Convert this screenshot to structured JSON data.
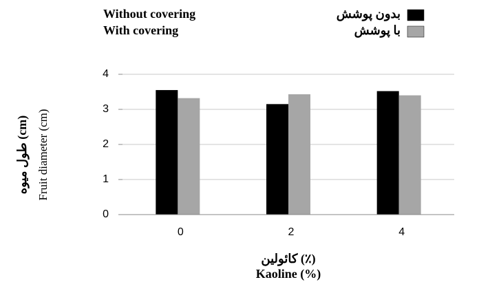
{
  "chart_data": {
    "type": "bar",
    "categories": [
      "0",
      "2",
      "4"
    ],
    "series": [
      {
        "name": "بدون پوشش",
        "name_en": "Without covering",
        "color": "#000000",
        "values": [
          3.55,
          3.15,
          3.52
        ]
      },
      {
        "name": "با پوشش",
        "name_en": "With covering",
        "color": "#a6a6a6",
        "values": [
          3.32,
          3.43,
          3.4
        ]
      }
    ],
    "ylim": [
      0,
      4
    ],
    "yticks": [
      0,
      1,
      2,
      3,
      4
    ],
    "grid": true,
    "y_label": "طول میوه (cm)",
    "y_label_en": "Fruit diameter (cm)",
    "x_label": "کائولین (٪)",
    "x_label_en": "Kaoline (%)",
    "legend": "top"
  }
}
